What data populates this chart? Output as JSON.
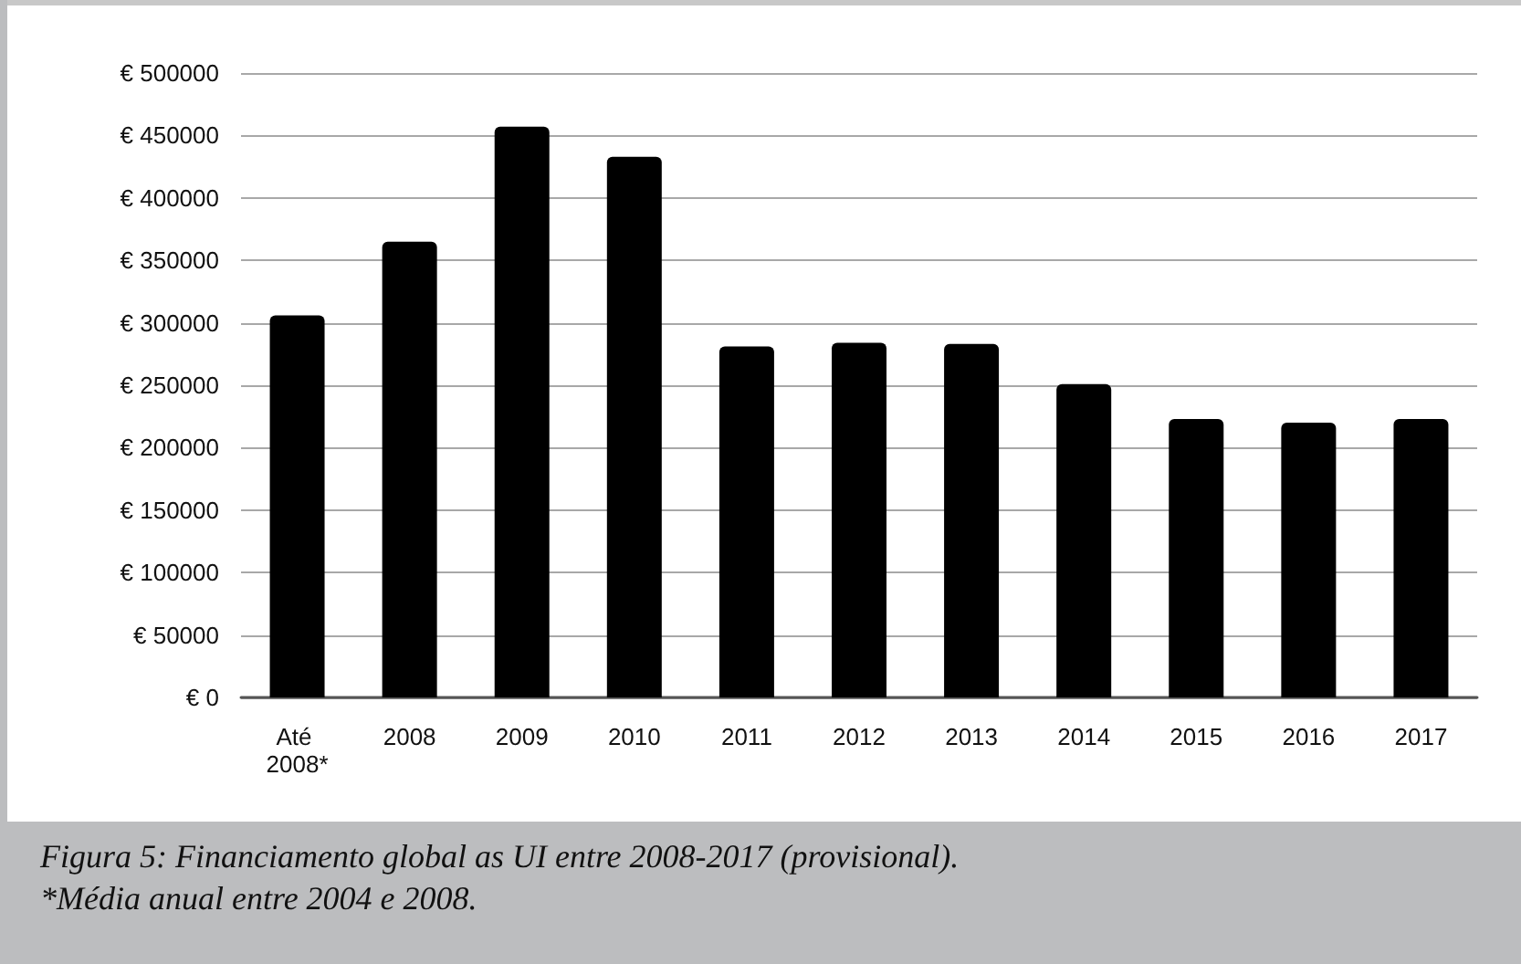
{
  "chart_data": {
    "type": "bar",
    "categories": [
      "Até 2008*",
      "2008",
      "2009",
      "2010",
      "2011",
      "2012",
      "2013",
      "2014",
      "2015",
      "2016",
      "2017"
    ],
    "values": [
      306000,
      365000,
      457000,
      433000,
      281000,
      284000,
      283000,
      251000,
      223000,
      220000,
      223000
    ],
    "color": "#000000",
    "ylim": [
      0,
      500000
    ],
    "yticks": [
      {
        "value": 0,
        "label": "€ 0"
      },
      {
        "value": 50000,
        "label": "€ 50000"
      },
      {
        "value": 100000,
        "label": "€ 100000"
      },
      {
        "value": 150000,
        "label": "€ 150000"
      },
      {
        "value": 200000,
        "label": "€ 200000"
      },
      {
        "value": 250000,
        "label": "€ 250000"
      },
      {
        "value": 300000,
        "label": "€ 300000"
      },
      {
        "value": 350000,
        "label": "€ 350000"
      },
      {
        "value": 400000,
        "label": "€ 400000"
      },
      {
        "value": 450000,
        "label": "€ 450000"
      },
      {
        "value": 500000,
        "label": "€ 500000"
      }
    ],
    "grid": "y",
    "annotations": [
      "Figura 5: Financiamento global as UI entre 2008-2017 (provisional).",
      "*Média anual entre 2004 e 2008."
    ]
  }
}
